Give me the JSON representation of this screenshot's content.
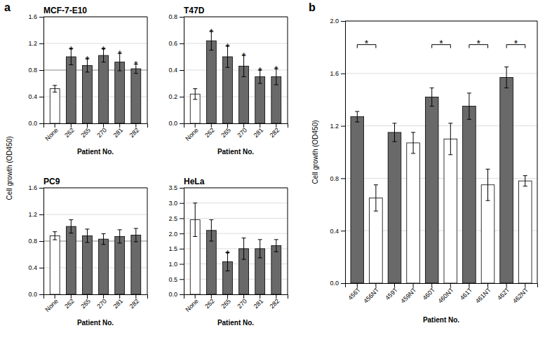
{
  "chart_data": [
    {
      "type": "bar",
      "title": "MCF-7-E10",
      "xlabel": "Patient No.",
      "ylabel": "Cell growth (OD450)",
      "categories": [
        "None",
        "262",
        "265",
        "270",
        "281",
        "282"
      ],
      "values": [
        0.52,
        1.0,
        0.87,
        1.02,
        0.92,
        0.82
      ],
      "errors": [
        0.05,
        0.12,
        0.1,
        0.1,
        0.13,
        0.07
      ],
      "colors": [
        "white",
        "#696969",
        "#696969",
        "#696969",
        "#696969",
        "#696969"
      ],
      "ylim": [
        0,
        1.6
      ],
      "yticks": [
        {
          "value": 0,
          "label": "0.0"
        },
        0.4,
        0.8,
        1.2,
        1.6
      ],
      "hline": 0.8,
      "grid": true,
      "annotations": [
        {
          "text": "a"
        },
        {
          "text": "*",
          "x": "262"
        },
        {
          "text": "*",
          "x": "265"
        },
        {
          "text": "*",
          "x": "270"
        },
        {
          "text": "*",
          "x": "281"
        },
        {
          "text": "*",
          "x": "282"
        }
      ]
    },
    {
      "type": "bar",
      "title": "T47D",
      "xlabel": "Patient No.",
      "categories": [
        "None",
        "262",
        "265",
        "270",
        "281",
        "282"
      ],
      "values": [
        0.22,
        0.62,
        0.5,
        0.43,
        0.35,
        0.35
      ],
      "errors": [
        0.04,
        0.07,
        0.08,
        0.08,
        0.05,
        0.06
      ],
      "colors": [
        "white",
        "#696969",
        "#696969",
        "#696969",
        "#696969",
        "#696969"
      ],
      "ylim": [
        0,
        0.8
      ],
      "yticks": [
        {
          "value": 0,
          "label": "0.0"
        },
        0.2,
        0.4,
        0.6,
        0.8
      ],
      "grid": true,
      "annotations": [
        {
          "text": "*",
          "x": "262"
        },
        {
          "text": "*",
          "x": "265"
        },
        {
          "text": "*",
          "x": "270"
        },
        {
          "text": "*",
          "x": "281"
        },
        {
          "text": "*",
          "x": "282"
        }
      ]
    },
    {
      "type": "bar",
      "title": "PC9",
      "xlabel": "Patient No.",
      "categories": [
        "None",
        "262",
        "265",
        "270",
        "281",
        "282"
      ],
      "values": [
        0.88,
        1.02,
        0.88,
        0.83,
        0.87,
        0.89
      ],
      "errors": [
        0.06,
        0.1,
        0.1,
        0.08,
        0.1,
        0.1
      ],
      "colors": [
        "white",
        "#696969",
        "#696969",
        "#696969",
        "#696969",
        "#696969"
      ],
      "ylim": [
        0,
        1.6
      ],
      "yticks": [
        {
          "value": 0,
          "label": "0.0"
        },
        0.4,
        0.8,
        1.2,
        1.6
      ],
      "hline": 0.8,
      "grid": true
    },
    {
      "type": "bar",
      "title": "HeLa",
      "xlabel": "Patient No.",
      "categories": [
        "None",
        "262",
        "265",
        "270",
        "281",
        "282"
      ],
      "values": [
        2.45,
        2.1,
        1.07,
        1.5,
        1.5,
        1.6
      ],
      "errors": [
        0.55,
        0.35,
        0.3,
        0.35,
        0.3,
        0.2
      ],
      "colors": [
        "white",
        "#696969",
        "#696969",
        "#696969",
        "#696969",
        "#696969"
      ],
      "ylim": [
        0,
        3.5
      ],
      "yticks": [
        {
          "value": 0,
          "label": "0.0"
        },
        0.5,
        {
          "value": 1.0,
          "label": "1.0"
        },
        1.5,
        {
          "value": 2.0,
          "label": "2.0"
        },
        2.5,
        {
          "value": 3.0,
          "label": "3.0"
        },
        3.5
      ],
      "grid": true,
      "annotations": [
        {
          "text": "*",
          "x": "265"
        }
      ]
    },
    {
      "type": "bar",
      "xlabel": "Patient No.",
      "ylabel": "Cell growth (OD450)",
      "categories": [
        "456T",
        "456NT",
        "459T",
        "459NT",
        "460T",
        "460NT",
        "461T",
        "461NT",
        "462T",
        "462NT"
      ],
      "values": [
        1.27,
        0.65,
        1.15,
        1.07,
        1.42,
        1.1,
        1.35,
        0.75,
        1.57,
        0.78
      ],
      "errors": [
        0.04,
        0.1,
        0.07,
        0.08,
        0.07,
        0.12,
        0.1,
        0.12,
        0.08,
        0.04
      ],
      "colors": [
        "#696969",
        "white",
        "#696969",
        "white",
        "#696969",
        "white",
        "#696969",
        "white",
        "#696969",
        "white"
      ],
      "ylim": [
        0,
        2.0
      ],
      "yticks": [
        {
          "value": 0,
          "label": "0.0"
        },
        0.4,
        0.8,
        1.2,
        1.6,
        {
          "value": 2.0,
          "label": "2.0"
        }
      ],
      "grid": true,
      "annotations": [
        {
          "text": "b"
        },
        {
          "text": "*",
          "x": [
            "456T",
            "456NT"
          ],
          "y": 1.82
        },
        {
          "text": "*",
          "x": [
            "460T",
            "460NT"
          ],
          "y": 1.82
        },
        {
          "text": "*",
          "x": [
            "461T",
            "461NT"
          ],
          "y": 1.82
        },
        {
          "text": "*",
          "x": [
            "462T",
            "462NT"
          ],
          "y": 1.82
        }
      ]
    }
  ]
}
